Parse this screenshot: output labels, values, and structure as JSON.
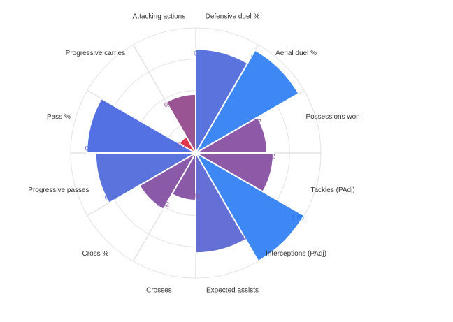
{
  "chart_data": {
    "type": "polar-area",
    "categories": [
      "Defensive duel %",
      "Aerial duel %",
      "Possessions won",
      "Tackles (PAdj)",
      "Interceptions (PAdj)",
      "Expected assists",
      "Crosses",
      "Cross %",
      "Progressive passes",
      "Pass %",
      "Progressive carries",
      "Attacking actions"
    ],
    "values": [
      0.83,
      0.95,
      0.57,
      0.62,
      1.0,
      0.8,
      0.38,
      0.52,
      0.8,
      0.87,
      0.15,
      0.47
    ],
    "value_labels": [
      "0.83",
      "0.95",
      "0.57",
      "0.62",
      "1.00",
      "0.80",
      "0.38",
      "0.52",
      "0.80",
      "0.87",
      "0.15",
      "0.47"
    ],
    "colors": [
      "#5b74dd",
      "#3d88f5",
      "#8e5aa8",
      "#8e5aa8",
      "#3d88f5",
      "#6470d6",
      "#8a5aa8",
      "#8a5aa8",
      "#5b74dd",
      "#5471e3",
      "#e0384c",
      "#9a5494"
    ],
    "label_colors": [
      "#5b74dd",
      "#3d88f5",
      "#8e5aa8",
      "#8e5aa8",
      "#1f6fe0",
      "#6470d6",
      "#8a5aa8",
      "#8a5aa8",
      "#5b74dd",
      "#5471e3",
      "#e0384c",
      "#9a5494"
    ],
    "rlim": [
      0,
      1
    ],
    "grid": true,
    "legend": "none"
  }
}
